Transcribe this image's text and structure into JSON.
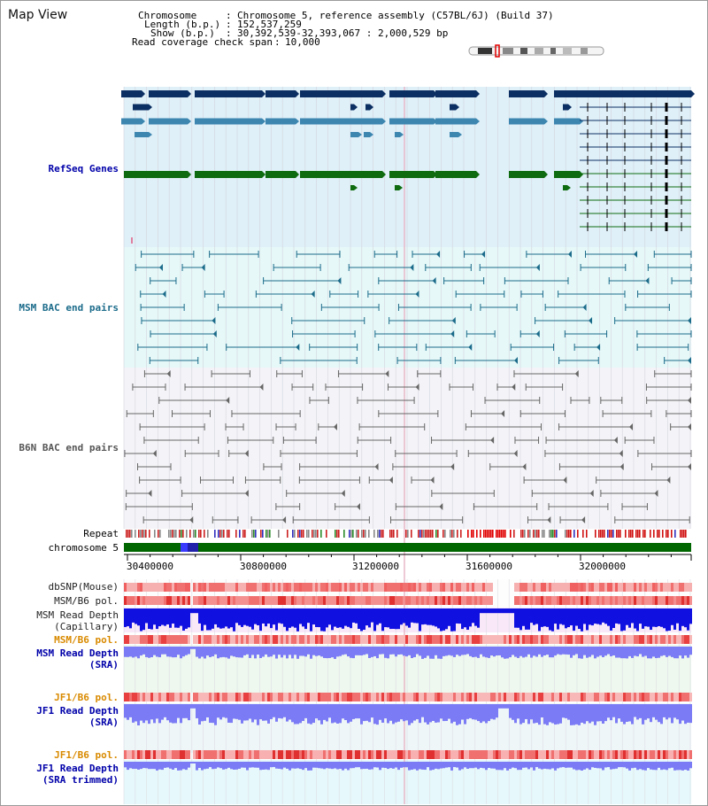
{
  "window": {
    "title": "Map View"
  },
  "header": {
    "chromosome_label": "Chromosome",
    "chromosome_value": "Chromosome 5, reference assembly (C57BL/6J) (Build 37)",
    "length_label": "Length (b.p.)",
    "length_value": "152,537,259",
    "show_label": "Show (b.p.)",
    "show_value": "30,392,539-32,393,067 : 2,000,529 bp",
    "coverage_label": "Read coverage check span",
    "coverage_value": "10,000"
  },
  "tracks": {
    "refseq": "RefSeq Genes",
    "msm_bac": "MSM BAC end pairs",
    "b6n_bac": "B6N BAC end pairs",
    "repeat": "Repeat",
    "chromosome": "chromosome 5",
    "dbsnp": "dbSNP(Mouse)",
    "msm_b6_pol": "MSM/B6 pol.",
    "msm_read_depth_cap": "MSM Read Depth\n(Capillary)",
    "msm_b6_pol_2": "MSM/B6 pol.",
    "msm_read_depth_sra": "MSM Read Depth\n(SRA)",
    "jf1_b6_pol": "JF1/B6 pol.",
    "jf1_read_depth_sra": "JF1 Read Depth\n(SRA)",
    "jf1_b6_pol_2": "JF1/B6 pol.",
    "jf1_read_depth_trim": "JF1 Read Depth\n(SRA trimmed)"
  },
  "axis": {
    "ticks": [
      "30400000",
      "30800000",
      "31200000",
      "31600000",
      "32000000"
    ]
  },
  "colors": {
    "refseq_dark": "#0c2f63",
    "refseq_mid": "#3d86b0",
    "refseq_green": "#0f6b0f",
    "msm_bac": "#1b6b8a",
    "b6n_bac": "#666666",
    "label_blue": "#0000aa",
    "label_teal": "#1b6b8a",
    "label_gray": "#555555",
    "label_orange": "#d98a00",
    "chrom_green": "#006600",
    "depth_blue": "#1010e0",
    "depth_light": "#7b7bf5"
  }
}
